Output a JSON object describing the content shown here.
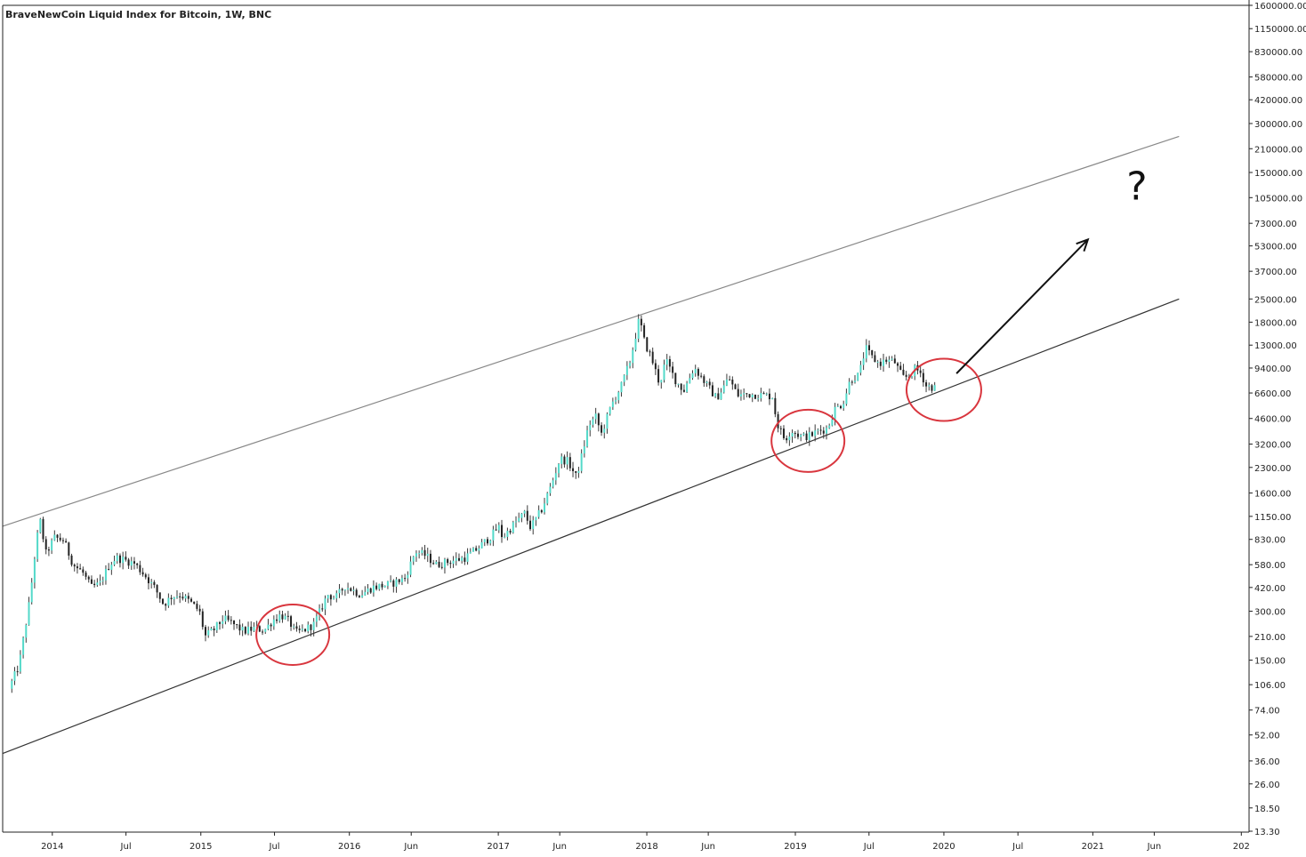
{
  "chart_data": {
    "type": "candlestick",
    "title": "BraveNewCoin Liquid Index for Bitcoin, 1W, BNC",
    "scale": "log",
    "ylim": [
      13.3,
      1600000
    ],
    "y_ticks": [
      {
        "label": "1600000.00",
        "value": 1600000
      },
      {
        "label": "1150000.00",
        "value": 1150000
      },
      {
        "label": "830000.00",
        "value": 830000
      },
      {
        "label": "580000.00",
        "value": 580000
      },
      {
        "label": "420000.00",
        "value": 420000
      },
      {
        "label": "300000.00",
        "value": 300000
      },
      {
        "label": "210000.00",
        "value": 210000
      },
      {
        "label": "150000.00",
        "value": 150000
      },
      {
        "label": "105000.00",
        "value": 105000
      },
      {
        "label": "73000.00",
        "value": 73000
      },
      {
        "label": "53000.00",
        "value": 53000
      },
      {
        "label": "37000.00",
        "value": 37000
      },
      {
        "label": "25000.00",
        "value": 25000
      },
      {
        "label": "18000.00",
        "value": 18000
      },
      {
        "label": "13000.00",
        "value": 13000
      },
      {
        "label": "9400.00",
        "value": 9400
      },
      {
        "label": "6600.00",
        "value": 6600
      },
      {
        "label": "4600.00",
        "value": 4600
      },
      {
        "label": "3200.00",
        "value": 3200
      },
      {
        "label": "2300.00",
        "value": 2300
      },
      {
        "label": "1600.00",
        "value": 1600
      },
      {
        "label": "1150.00",
        "value": 1150
      },
      {
        "label": "830.00",
        "value": 830
      },
      {
        "label": "580.00",
        "value": 580
      },
      {
        "label": "420.00",
        "value": 420
      },
      {
        "label": "300.00",
        "value": 300
      },
      {
        "label": "210.00",
        "value": 210
      },
      {
        "label": "150.00",
        "value": 150
      },
      {
        "label": "106.00",
        "value": 106
      },
      {
        "label": "74.00",
        "value": 74
      },
      {
        "label": "52.00",
        "value": 52
      },
      {
        "label": "36.00",
        "value": 36
      },
      {
        "label": "26.00",
        "value": 26
      },
      {
        "label": "18.50",
        "value": 18.5
      },
      {
        "label": "13.30",
        "value": 13.3
      }
    ],
    "x_ticks": [
      {
        "label": "2014",
        "date": "2014-01-01"
      },
      {
        "label": "Jul",
        "date": "2014-07-01"
      },
      {
        "label": "2015",
        "date": "2015-01-01"
      },
      {
        "label": "Jul",
        "date": "2015-07-01"
      },
      {
        "label": "2016",
        "date": "2016-01-01"
      },
      {
        "label": "Jun",
        "date": "2016-06-01"
      },
      {
        "label": "2017",
        "date": "2017-01-01"
      },
      {
        "label": "Jun",
        "date": "2017-06-01"
      },
      {
        "label": "2018",
        "date": "2018-01-01"
      },
      {
        "label": "Jun",
        "date": "2018-06-01"
      },
      {
        "label": "2019",
        "date": "2019-01-01"
      },
      {
        "label": "Jul",
        "date": "2019-07-01"
      },
      {
        "label": "2020",
        "date": "2020-01-01"
      },
      {
        "label": "Jul",
        "date": "2020-07-01"
      },
      {
        "label": "2021",
        "date": "2021-01-01"
      },
      {
        "label": "Jun",
        "date": "2021-06-01"
      },
      {
        "label": "202",
        "date": "2022-01-01"
      }
    ],
    "price_points": [
      [
        "2013-09-20",
        100
      ],
      [
        "2013-10-15",
        140
      ],
      [
        "2013-11-10",
        350
      ],
      [
        "2013-11-25",
        750
      ],
      [
        "2013-12-05",
        1100
      ],
      [
        "2013-12-20",
        680
      ],
      [
        "2014-01-10",
        850
      ],
      [
        "2014-02-01",
        820
      ],
      [
        "2014-02-25",
        580
      ],
      [
        "2014-03-20",
        520
      ],
      [
        "2014-04-10",
        420
      ],
      [
        "2014-05-01",
        440
      ],
      [
        "2014-05-25",
        580
      ],
      [
        "2014-06-10",
        640
      ],
      [
        "2014-07-01",
        620
      ],
      [
        "2014-07-25",
        590
      ],
      [
        "2014-08-20",
        500
      ],
      [
        "2014-09-15",
        410
      ],
      [
        "2014-10-05",
        330
      ],
      [
        "2014-10-25",
        370
      ],
      [
        "2014-11-15",
        380
      ],
      [
        "2014-12-10",
        340
      ],
      [
        "2015-01-01",
        300
      ],
      [
        "2015-01-15",
        210
      ],
      [
        "2015-02-05",
        230
      ],
      [
        "2015-03-01",
        270
      ],
      [
        "2015-03-25",
        250
      ],
      [
        "2015-04-20",
        225
      ],
      [
        "2015-05-15",
        235
      ],
      [
        "2015-06-10",
        230
      ],
      [
        "2015-07-01",
        265
      ],
      [
        "2015-07-20",
        285
      ],
      [
        "2015-08-10",
        260
      ],
      [
        "2015-08-25",
        220
      ],
      [
        "2015-09-15",
        230
      ],
      [
        "2015-10-10",
        250
      ],
      [
        "2015-11-01",
        330
      ],
      [
        "2015-11-12",
        380
      ],
      [
        "2015-12-01",
        360
      ],
      [
        "2015-12-25",
        430
      ],
      [
        "2016-02-01",
        380
      ],
      [
        "2016-03-01",
        420
      ],
      [
        "2016-04-15",
        440
      ],
      [
        "2016-05-20",
        480
      ],
      [
        "2016-06-15",
        700
      ],
      [
        "2016-07-10",
        660
      ],
      [
        "2016-08-05",
        580
      ],
      [
        "2016-09-10",
        610
      ],
      [
        "2016-10-15",
        640
      ],
      [
        "2016-11-15",
        730
      ],
      [
        "2016-12-20",
        880
      ],
      [
        "2017-01-05",
        1000
      ],
      [
        "2017-01-15",
        850
      ],
      [
        "2017-02-15",
        1050
      ],
      [
        "2017-03-10",
        1200
      ],
      [
        "2017-03-25",
        980
      ],
      [
        "2017-04-20",
        1250
      ],
      [
        "2017-05-15",
        1800
      ],
      [
        "2017-06-05",
        2600
      ],
      [
        "2017-06-25",
        2500
      ],
      [
        "2017-07-15",
        2000
      ],
      [
        "2017-07-30",
        2800
      ],
      [
        "2017-08-15",
        4200
      ],
      [
        "2017-09-01",
        4700
      ],
      [
        "2017-09-15",
        3700
      ],
      [
        "2017-10-10",
        5600
      ],
      [
        "2017-11-05",
        7500
      ],
      [
        "2017-11-25",
        10500
      ],
      [
        "2017-12-17",
        19000
      ],
      [
        "2017-12-30",
        13500
      ],
      [
        "2018-01-15",
        11000
      ],
      [
        "2018-02-05",
        7500
      ],
      [
        "2018-02-20",
        10500
      ],
      [
        "2018-03-15",
        8000
      ],
      [
        "2018-04-05",
        6800
      ],
      [
        "2018-05-01",
        9500
      ],
      [
        "2018-05-30",
        7500
      ],
      [
        "2018-06-25",
        6100
      ],
      [
        "2018-07-25",
        8200
      ],
      [
        "2018-08-15",
        6400
      ],
      [
        "2018-09-10",
        6500
      ],
      [
        "2018-10-15",
        6400
      ],
      [
        "2018-11-10",
        6300
      ],
      [
        "2018-11-20",
        4300
      ],
      [
        "2018-12-10",
        3400
      ],
      [
        "2018-12-25",
        3900
      ],
      [
        "2019-01-20",
        3550
      ],
      [
        "2019-02-10",
        3600
      ],
      [
        "2019-03-01",
        3850
      ],
      [
        "2019-03-25",
        4000
      ],
      [
        "2019-04-10",
        5200
      ],
      [
        "2019-05-01",
        5700
      ],
      [
        "2019-05-20",
        8000
      ],
      [
        "2019-06-10",
        8500
      ],
      [
        "2019-06-26",
        12500
      ],
      [
        "2019-07-10",
        11000
      ],
      [
        "2019-07-30",
        10000
      ],
      [
        "2019-08-15",
        10500
      ],
      [
        "2019-09-05",
        10300
      ],
      [
        "2019-09-25",
        8200
      ],
      [
        "2019-10-10",
        8300
      ],
      [
        "2019-10-26",
        9300
      ],
      [
        "2019-11-10",
        8700
      ],
      [
        "2019-11-22",
        7300
      ],
      [
        "2019-12-05",
        7200
      ],
      [
        "2019-12-10",
        7100
      ]
    ],
    "upper_channel": [
      [
        "2013-09-01",
        1000
      ],
      [
        "2021-08-01",
        250000
      ]
    ],
    "lower_channel": [
      [
        "2013-09-01",
        40
      ],
      [
        "2021-08-01",
        25000
      ]
    ],
    "annotations": {
      "circles": [
        {
          "center": [
            "2015-08-15",
            215
          ]
        },
        {
          "center": [
            "2019-02-01",
            3350
          ]
        },
        {
          "center": [
            "2020-01-01",
            6900
          ]
        }
      ],
      "arrow": {
        "from": [
          "2020-02-01",
          8700
        ],
        "to": [
          "2020-12-20",
          58000
        ]
      },
      "question_mark": {
        "text": "?",
        "at": [
          "2021-04-20",
          125000
        ]
      }
    },
    "colors": {
      "up": "#53d9c9",
      "down": "#222222",
      "wick": "#3a3a3a",
      "channel_upper": "#888888",
      "channel_lower": "#333333",
      "circle": "#d9363e",
      "arrow": "#111111",
      "axis": "#222222"
    }
  }
}
